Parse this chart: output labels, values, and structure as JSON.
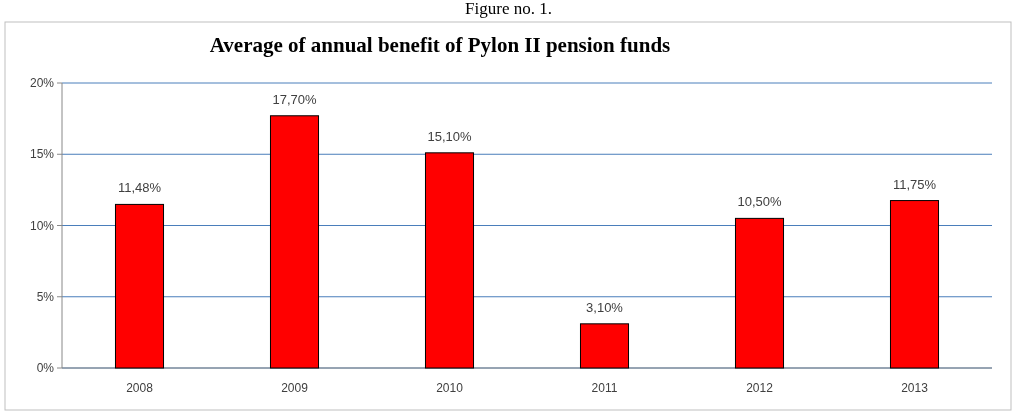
{
  "chart_data": {
    "type": "bar",
    "title": "Average of annual benefit of Pylon II pension funds",
    "annotations": [
      "Figure no. 1."
    ],
    "categories": [
      "2008",
      "2009",
      "2010",
      "2011",
      "2012",
      "2013"
    ],
    "values": [
      11.48,
      17.7,
      15.1,
      3.1,
      10.5,
      11.75
    ],
    "value_labels": [
      "11,48%",
      "17,70%",
      "15,10%",
      "3,10%",
      "10,50%",
      "11,75%"
    ],
    "color": "#ff0000",
    "ylim": [
      0,
      20
    ],
    "yticks": [
      {
        "value": 0,
        "label": "0%"
      },
      {
        "value": 5,
        "label": "5%"
      },
      {
        "value": 10,
        "label": "10%"
      },
      {
        "value": 15,
        "label": "15%"
      },
      {
        "value": 20,
        "label": "20%"
      }
    ],
    "grid": "y"
  }
}
